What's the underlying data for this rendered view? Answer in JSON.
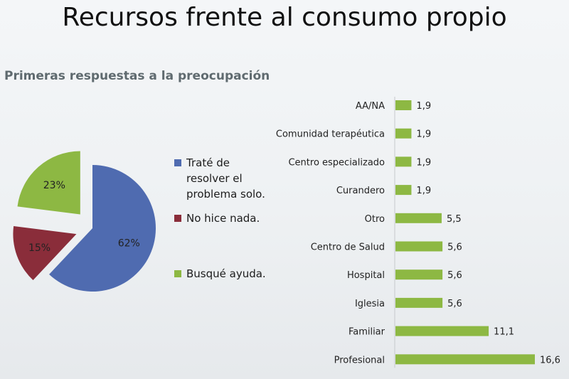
{
  "title": "Recursos frente al consumo propio",
  "subtitle": "Primeras respuestas a la preocupación",
  "colors": {
    "blue": "#4f6bb0",
    "red": "#8a2d3a",
    "green": "#8db843"
  },
  "chart_data": [
    {
      "type": "pie",
      "title": "",
      "slices": [
        {
          "label": "Traté de resolver el problema solo.",
          "value": 62,
          "display": "62%",
          "color": "#4f6bb0"
        },
        {
          "label": "No hice nada.",
          "value": 15,
          "display": "15%",
          "color": "#8a2d3a"
        },
        {
          "label": "Busqué ayuda.",
          "value": 23,
          "display": "23%",
          "color": "#8db843"
        }
      ],
      "legend": "right"
    },
    {
      "type": "bar",
      "orientation": "horizontal",
      "title": "",
      "categories": [
        "AA/NA",
        "Comunidad terapéutica",
        "Centro especializado",
        "Curandero",
        "Otro",
        "Centro de Salud",
        "Hospital",
        "Iglesia",
        "Familiar",
        "Profesional"
      ],
      "values": [
        1.9,
        1.9,
        1.9,
        1.9,
        5.5,
        5.6,
        5.6,
        5.6,
        11.1,
        16.6
      ],
      "labels": [
        "1,9",
        "1,9",
        "1,9",
        "1,9",
        "5,5",
        "5,6",
        "5,6",
        "5,6",
        "11,1",
        "16,6"
      ],
      "color": "#8db843",
      "grid": false
    }
  ]
}
